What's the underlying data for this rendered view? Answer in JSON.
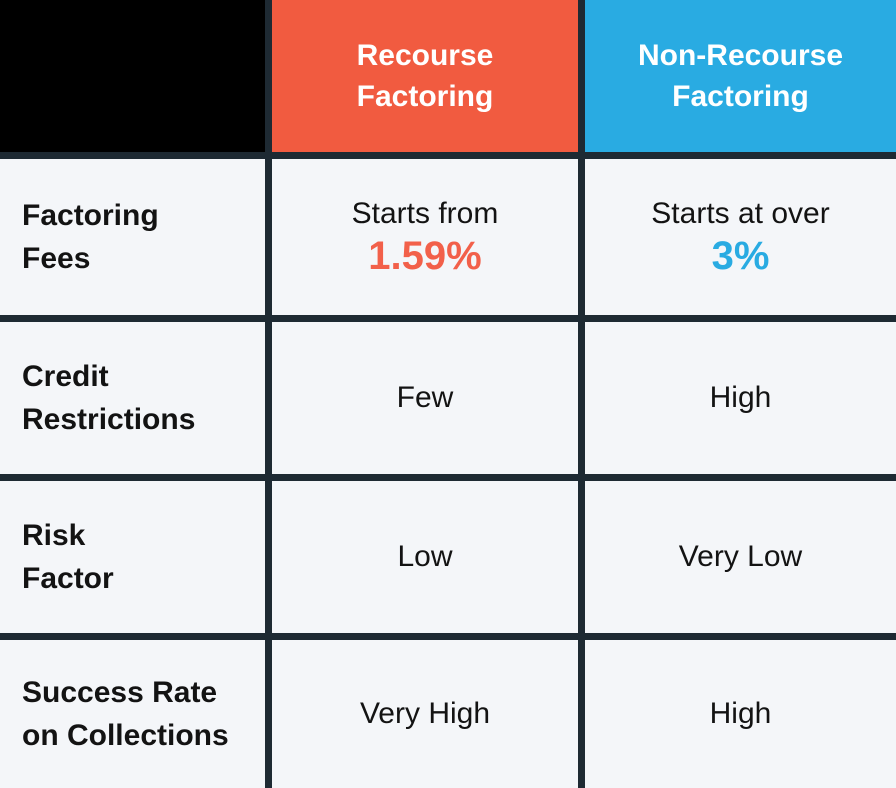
{
  "colors": {
    "header_blank_bg": "#000000",
    "recourse_header_bg": "#f15b40",
    "nonrecourse_header_bg": "#29abe2",
    "grid_border": "#1e2a33",
    "cell_bg": "#f4f6f9",
    "body_text": "#131313",
    "header_text": "#ffffff",
    "recourse_accent": "#f2604a",
    "nonrecourse_accent": "#29abe2"
  },
  "header": {
    "recourse": {
      "line1": "Recourse",
      "line2": "Factoring"
    },
    "nonrecourse": {
      "line1": "Non-Recourse",
      "line2": "Factoring"
    }
  },
  "rows": [
    {
      "label": {
        "line1": "Factoring",
        "line2": "Fees"
      },
      "recourse": {
        "prefix": "Starts from",
        "value": "1.59%"
      },
      "nonrecourse": {
        "prefix": "Starts at over",
        "value": "3%"
      }
    },
    {
      "label": {
        "line1": "Credit",
        "line2": "Restrictions"
      },
      "recourse": {
        "value": "Few"
      },
      "nonrecourse": {
        "value": "High"
      }
    },
    {
      "label": {
        "line1": "Risk",
        "line2": "Factor"
      },
      "recourse": {
        "value": "Low"
      },
      "nonrecourse": {
        "value": "Very Low"
      }
    },
    {
      "label": {
        "line1": "Success Rate",
        "line2": "on Collections"
      },
      "recourse": {
        "value": "Very High"
      },
      "nonrecourse": {
        "value": "High"
      }
    }
  ],
  "chart_data": {
    "type": "table",
    "title": "Recourse vs Non-Recourse Factoring comparison",
    "columns": [
      "",
      "Recourse Factoring",
      "Non-Recourse Factoring"
    ],
    "rows": [
      [
        "Factoring Fees",
        "Starts from 1.59%",
        "Starts at over 3%"
      ],
      [
        "Credit Restrictions",
        "Few",
        "High"
      ],
      [
        "Risk Factor",
        "Low",
        "Very Low"
      ],
      [
        "Success Rate on Collections",
        "Very High",
        "High"
      ]
    ]
  }
}
